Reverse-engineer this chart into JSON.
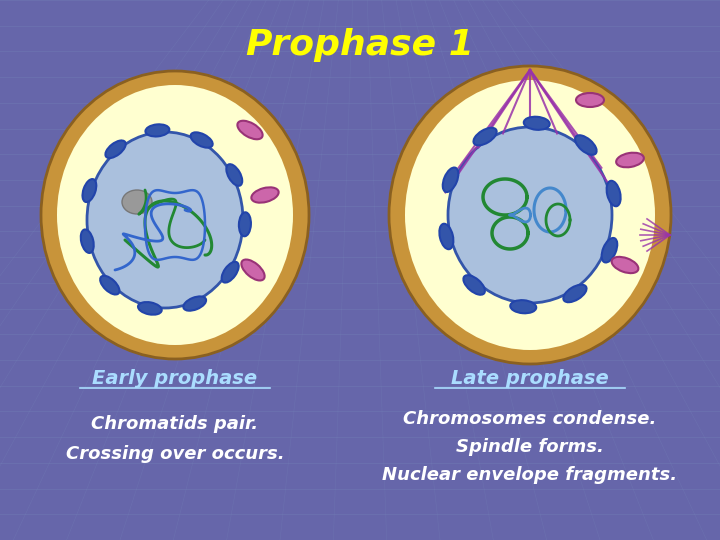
{
  "title": "Prophase 1",
  "title_color": "#ffff00",
  "title_fontsize": 26,
  "background_color": "#6666aa",
  "grid_color": "#7788bb",
  "text_color": "#ffffff",
  "label_color": "#aaddff",
  "early_label": "Early prophase",
  "late_label": "Late prophase",
  "early_desc1": "Chromatids pair.",
  "early_desc2": "Crossing over occurs.",
  "late_desc1": "Chromosomes condense.",
  "late_desc2": "Spindle forms.",
  "late_desc3": "Nuclear envelope fragments.",
  "cell_outer_color": "#c8943a",
  "cell_inner_color": "#ffffd0",
  "nucleus_color": "#aac0dd",
  "chromosome_blue": "#3355aa",
  "chromosome_blue_dark": "#2244aa",
  "chromosome_green": "#228833",
  "chromosome_green2": "#44aacc",
  "chromosome_pink": "#cc66aa",
  "chromosome_pink_dark": "#993377",
  "nucleolus_color": "#999999",
  "spindle_color": "#9933aa"
}
